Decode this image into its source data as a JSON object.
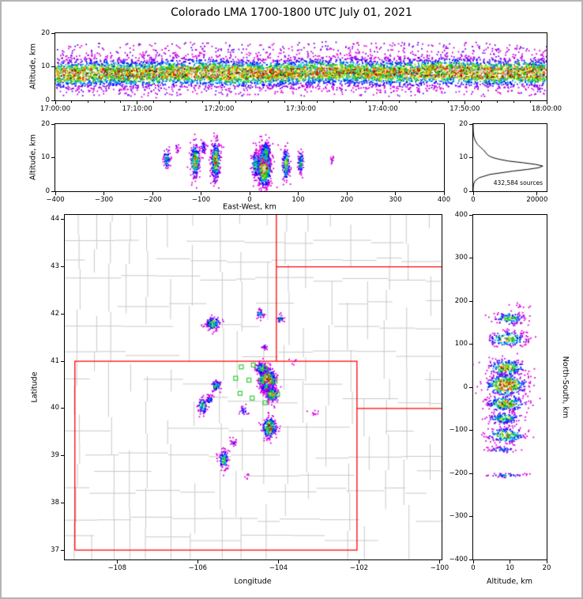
{
  "title": "Colorado LMA 1700-1800 UTC July 01, 2021",
  "colors": {
    "background": "#ffffff",
    "frame": "#000000",
    "state_border": "#ff0000",
    "county_lines": "#c8c8c8",
    "station_marker": "#33cc33",
    "histogram_line": "#000000"
  },
  "density_palette": [
    {
      "max": 0.1,
      "color": "#dd00dd"
    },
    {
      "max": 0.18,
      "color": "#7700ee"
    },
    {
      "max": 0.27,
      "color": "#0000ff"
    },
    {
      "max": 0.36,
      "color": "#0077ff"
    },
    {
      "max": 0.45,
      "color": "#00cccc"
    },
    {
      "max": 0.54,
      "color": "#00bb00"
    },
    {
      "max": 0.62,
      "color": "#66dd00"
    },
    {
      "max": 0.7,
      "color": "#ffee00"
    },
    {
      "max": 0.78,
      "color": "#ff9900"
    },
    {
      "max": 0.86,
      "color": "#ff2200"
    },
    {
      "max": 0.92,
      "color": "#aa0000"
    },
    {
      "max": 0.965,
      "color": "#141414"
    },
    {
      "max": 0.99,
      "color": "#8a8a8a"
    },
    {
      "max": 1.01,
      "color": "#dcdcdc"
    }
  ],
  "chart_data": [
    {
      "id": "time_height",
      "type": "scatter",
      "xlabel": "",
      "ylabel": "Altitude, km",
      "x_range": [
        0,
        3600
      ],
      "y_range": [
        0,
        20
      ],
      "x_ticks": [
        {
          "v": 0,
          "label": "17:00:00"
        },
        {
          "v": 600,
          "label": "17:10:00"
        },
        {
          "v": 1200,
          "label": "17:20:00"
        },
        {
          "v": 1800,
          "label": "17:30:00"
        },
        {
          "v": 2400,
          "label": "17:40:00"
        },
        {
          "v": 3000,
          "label": "17:50:00"
        },
        {
          "v": 3600,
          "label": "18:00:00"
        }
      ],
      "x_minor_step": 120,
      "y_ticks": [
        {
          "v": 0,
          "label": "0"
        },
        {
          "v": 10,
          "label": "10"
        },
        {
          "v": 20,
          "label": "20"
        }
      ],
      "band": {
        "control_t": [
          0,
          200,
          400,
          600,
          800,
          1000,
          1200,
          1400,
          1600,
          1800,
          2000,
          2200,
          2400,
          2600,
          2800,
          3000,
          3200,
          3400,
          3600
        ],
        "intensity": [
          0.88,
          0.92,
          0.85,
          0.8,
          0.83,
          0.9,
          0.94,
          0.88,
          0.8,
          0.85,
          0.8,
          0.76,
          0.8,
          0.86,
          0.9,
          0.95,
          0.92,
          0.9,
          0.94
        ],
        "alt_center_km": [
          7.8,
          8.0,
          8.2,
          7.9,
          8.1,
          8.4,
          8.2,
          7.9,
          8.0,
          8.3,
          8.6,
          8.4,
          8.1,
          8.3,
          8.6,
          8.4,
          8.1,
          8.3,
          8.2
        ],
        "alt_spread_km": 2.1,
        "n_points": 9000,
        "outlier_frac": 0.06,
        "low_frac": 0.03
      }
    },
    {
      "id": "east_west",
      "type": "scatter",
      "xlabel": "East-West, km",
      "ylabel": "Altitude, km",
      "x_range": [
        -400,
        400
      ],
      "y_range": [
        0,
        20
      ],
      "x_ticks": [
        {
          "v": -400,
          "label": "−400"
        },
        {
          "v": -300,
          "label": "−300"
        },
        {
          "v": -200,
          "label": "−200"
        },
        {
          "v": -100,
          "label": "−100"
        },
        {
          "v": 0,
          "label": "0"
        },
        {
          "v": 100,
          "label": "100"
        },
        {
          "v": 200,
          "label": "200"
        },
        {
          "v": 300,
          "label": "300"
        },
        {
          "v": 400,
          "label": "400"
        }
      ],
      "y_ticks": [
        {
          "v": 0,
          "label": "0"
        },
        {
          "v": 10,
          "label": "10"
        },
        {
          "v": 20,
          "label": "20"
        }
      ],
      "clusters": [
        {
          "x": 30,
          "y": 7,
          "sx": 7,
          "sy": 2.8,
          "n": 850,
          "peak": 1.0
        },
        {
          "x": 33,
          "y": 11.5,
          "sx": 5,
          "sy": 1.8,
          "n": 160,
          "peak": 0.55
        },
        {
          "x": 12,
          "y": 8,
          "sx": 4,
          "sy": 2.2,
          "n": 120,
          "peak": 0.5
        },
        {
          "x": 75,
          "y": 8,
          "sx": 4,
          "sy": 2.4,
          "n": 170,
          "peak": 0.65
        },
        {
          "x": -70,
          "y": 9,
          "sx": 5,
          "sy": 3.0,
          "n": 300,
          "peak": 0.75
        },
        {
          "x": -112,
          "y": 9,
          "sx": 5,
          "sy": 2.6,
          "n": 240,
          "peak": 0.7
        },
        {
          "x": -95,
          "y": 13,
          "sx": 3,
          "sy": 1.2,
          "n": 40,
          "peak": 0.3
        },
        {
          "x": -170,
          "y": 9.5,
          "sx": 4,
          "sy": 1.6,
          "n": 70,
          "peak": 0.45
        },
        {
          "x": -150,
          "y": 12.5,
          "sx": 3,
          "sy": 1.0,
          "n": 15,
          "peak": 0.15
        },
        {
          "x": 105,
          "y": 8.5,
          "sx": 3,
          "sy": 1.8,
          "n": 100,
          "peak": 0.5
        },
        {
          "x": 170,
          "y": 9,
          "sx": 2,
          "sy": 0.8,
          "n": 12,
          "peak": 0.15
        }
      ]
    },
    {
      "id": "altitude_histogram",
      "type": "line",
      "xlabel": "",
      "ylabel": "",
      "annotation": "432,584 sources",
      "x_range": [
        0,
        23000
      ],
      "y_range": [
        0,
        20
      ],
      "x_ticks": [
        {
          "v": 0,
          "label": "0"
        },
        {
          "v": 20000,
          "label": "20000"
        }
      ],
      "y_ticks": [
        {
          "v": 0,
          "label": "0"
        },
        {
          "v": 10,
          "label": "10"
        },
        {
          "v": 20,
          "label": "20"
        }
      ],
      "series": {
        "altitude_km": [
          0,
          1,
          2,
          3,
          4,
          5,
          6,
          6.5,
          7,
          7.5,
          8,
          8.5,
          9,
          9.5,
          10,
          10.5,
          11,
          11.5,
          12,
          12.5,
          13,
          13.5,
          14,
          15,
          16,
          17,
          18,
          19,
          20
        ],
        "count": [
          0,
          0,
          120,
          500,
          1800,
          5200,
          12500,
          17000,
          20500,
          21800,
          19500,
          15500,
          11000,
          8200,
          6200,
          5000,
          4300,
          3900,
          3500,
          3000,
          2400,
          1800,
          1300,
          650,
          280,
          90,
          25,
          4,
          0
        ]
      }
    },
    {
      "id": "plan_view",
      "type": "scatter",
      "xlabel": "Longitude",
      "ylabel": "Latitude",
      "x_range": [
        -109.3,
        -99.95
      ],
      "y_range": [
        36.8,
        44.1
      ],
      "x_ticks": [
        {
          "v": -108,
          "label": "−108"
        },
        {
          "v": -106,
          "label": "−106"
        },
        {
          "v": -104,
          "label": "−104"
        },
        {
          "v": -102,
          "label": "−102"
        },
        {
          "v": -100,
          "label": "−100"
        }
      ],
      "y_ticks": [
        {
          "v": 37,
          "label": "37"
        },
        {
          "v": 38,
          "label": "38"
        },
        {
          "v": 39,
          "label": "39"
        },
        {
          "v": 40,
          "label": "40"
        },
        {
          "v": 41,
          "label": "41"
        },
        {
          "v": 42,
          "label": "42"
        },
        {
          "v": 43,
          "label": "43"
        },
        {
          "v": 44,
          "label": "44"
        }
      ],
      "state_lines": [
        [
          [
            -109.05,
            37.0
          ],
          [
            -102.05,
            37.0
          ],
          [
            -102.05,
            41.0
          ],
          [
            -109.05,
            41.0
          ],
          [
            -109.05,
            37.0
          ]
        ],
        [
          [
            -104.05,
            41.0
          ],
          [
            -104.05,
            44.1
          ]
        ],
        [
          [
            -104.05,
            43.0
          ],
          [
            -99.95,
            43.0
          ]
        ],
        [
          [
            -102.05,
            40.0
          ],
          [
            -99.95,
            40.0
          ]
        ]
      ],
      "stations": [
        [
          -104.92,
          40.88
        ],
        [
          -104.62,
          40.92
        ],
        [
          -104.33,
          40.86
        ],
        [
          -105.06,
          40.64
        ],
        [
          -104.73,
          40.6
        ],
        [
          -104.42,
          40.6
        ],
        [
          -104.08,
          40.58
        ],
        [
          -104.95,
          40.32
        ],
        [
          -104.65,
          40.22
        ],
        [
          -104.33,
          40.12
        ],
        [
          -104.02,
          40.3
        ]
      ],
      "clusters": [
        {
          "x": -104.28,
          "y": 40.6,
          "sx": 0.1,
          "sy": 0.13,
          "n": 600,
          "peak": 1.0
        },
        {
          "x": -104.42,
          "y": 40.84,
          "sx": 0.07,
          "sy": 0.06,
          "n": 120,
          "peak": 0.62
        },
        {
          "x": -104.3,
          "y": 40.44,
          "sx": 0.06,
          "sy": 0.06,
          "n": 90,
          "peak": 0.55
        },
        {
          "x": -104.16,
          "y": 40.3,
          "sx": 0.08,
          "sy": 0.08,
          "n": 150,
          "peak": 0.7
        },
        {
          "x": -104.22,
          "y": 39.6,
          "sx": 0.09,
          "sy": 0.11,
          "n": 230,
          "peak": 0.82
        },
        {
          "x": -105.62,
          "y": 41.8,
          "sx": 0.09,
          "sy": 0.07,
          "n": 130,
          "peak": 0.62
        },
        {
          "x": -104.45,
          "y": 42.0,
          "sx": 0.05,
          "sy": 0.05,
          "n": 40,
          "peak": 0.42
        },
        {
          "x": -103.95,
          "y": 41.9,
          "sx": 0.04,
          "sy": 0.05,
          "n": 30,
          "peak": 0.4
        },
        {
          "x": -104.35,
          "y": 41.3,
          "sx": 0.04,
          "sy": 0.04,
          "n": 16,
          "peak": 0.2
        },
        {
          "x": -105.55,
          "y": 40.48,
          "sx": 0.07,
          "sy": 0.06,
          "n": 80,
          "peak": 0.5
        },
        {
          "x": -105.88,
          "y": 40.05,
          "sx": 0.06,
          "sy": 0.09,
          "n": 90,
          "peak": 0.52
        },
        {
          "x": -105.7,
          "y": 40.18,
          "sx": 0.05,
          "sy": 0.05,
          "n": 40,
          "peak": 0.35
        },
        {
          "x": -105.35,
          "y": 38.92,
          "sx": 0.06,
          "sy": 0.1,
          "n": 110,
          "peak": 0.55
        },
        {
          "x": -105.12,
          "y": 39.3,
          "sx": 0.04,
          "sy": 0.05,
          "n": 20,
          "peak": 0.25
        },
        {
          "x": -103.1,
          "y": 39.9,
          "sx": 0.06,
          "sy": 0.05,
          "n": 10,
          "peak": 0.1
        },
        {
          "x": -104.85,
          "y": 39.95,
          "sx": 0.05,
          "sy": 0.05,
          "n": 25,
          "peak": 0.3
        },
        {
          "x": -104.75,
          "y": 38.55,
          "sx": 0.05,
          "sy": 0.04,
          "n": 6,
          "peak": 0.08
        },
        {
          "x": -103.6,
          "y": 40.95,
          "sx": 0.05,
          "sy": 0.04,
          "n": 6,
          "peak": 0.08
        }
      ]
    },
    {
      "id": "north_south",
      "type": "scatter",
      "xlabel": "Altitude, km",
      "ylabel": "North-South, km",
      "x_range": [
        0,
        20
      ],
      "y_range": [
        -400,
        400
      ],
      "x_ticks": [
        {
          "v": 0,
          "label": "0"
        },
        {
          "v": 10,
          "label": "10"
        },
        {
          "v": 20,
          "label": "20"
        }
      ],
      "y_ticks": [
        {
          "v": 400,
          "label": "400"
        },
        {
          "v": 300,
          "label": "300"
        },
        {
          "v": 200,
          "label": "200"
        },
        {
          "v": 100,
          "label": "100"
        },
        {
          "v": 0,
          "label": "0"
        },
        {
          "v": -100,
          "label": "−100"
        },
        {
          "v": -200,
          "label": "−200"
        },
        {
          "v": -300,
          "label": "−300"
        },
        {
          "v": -400,
          "label": "−400"
        }
      ],
      "clusters": [
        {
          "x": 10,
          "y": 160,
          "sx": 2.2,
          "sy": 7,
          "n": 130,
          "peak": 0.6
        },
        {
          "x": 9.5,
          "y": 112,
          "sx": 2.8,
          "sy": 9,
          "n": 190,
          "peak": 0.68
        },
        {
          "x": 9,
          "y": 45,
          "sx": 2.5,
          "sy": 10,
          "n": 230,
          "peak": 0.8
        },
        {
          "x": 9,
          "y": 5,
          "sx": 2.8,
          "sy": 13,
          "n": 430,
          "peak": 1.0
        },
        {
          "x": 9,
          "y": -38,
          "sx": 2.6,
          "sy": 9,
          "n": 260,
          "peak": 0.85
        },
        {
          "x": 8.5,
          "y": -72,
          "sx": 2.3,
          "sy": 7,
          "n": 160,
          "peak": 0.6
        },
        {
          "x": 9,
          "y": -112,
          "sx": 2.6,
          "sy": 9,
          "n": 200,
          "peak": 0.7
        },
        {
          "x": 8,
          "y": -145,
          "sx": 2.0,
          "sy": 4,
          "n": 50,
          "peak": 0.35
        },
        {
          "x": 9,
          "y": -205,
          "sx": 2.5,
          "sy": 3,
          "n": 45,
          "peak": 0.4
        },
        {
          "x": 12,
          "y": 190,
          "sx": 1.5,
          "sy": 3,
          "n": 10,
          "peak": 0.12
        }
      ]
    }
  ]
}
